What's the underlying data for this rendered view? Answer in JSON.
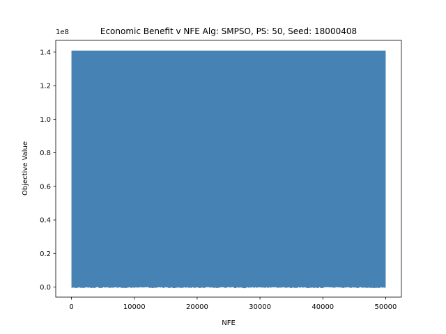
{
  "chart_data": {
    "type": "line",
    "title": "Economic Benefit v NFE Alg: SMPSO, PS: 50, Seed: 18000408",
    "xlabel": "NFE",
    "ylabel": "Objective Value",
    "y_offset_label": "1e8",
    "xlim": [
      -2500,
      52500
    ],
    "ylim": [
      -6000000,
      147000000
    ],
    "x_ticks": [
      0,
      10000,
      20000,
      30000,
      40000,
      50000
    ],
    "x_tick_labels": [
      "0",
      "10000",
      "20000",
      "30000",
      "40000",
      "50000"
    ],
    "y_ticks": [
      0,
      20000000,
      40000000,
      60000000,
      80000000,
      100000000,
      120000000,
      140000000
    ],
    "y_tick_labels": [
      "0.0",
      "0.2",
      "0.4",
      "0.6",
      "0.8",
      "1.0",
      "1.2",
      "1.4"
    ],
    "grid": false,
    "series": [
      {
        "color": "#4682b4",
        "x_range": [
          0,
          50000
        ],
        "y_max": 140900000,
        "y_min": 0
      }
    ]
  }
}
